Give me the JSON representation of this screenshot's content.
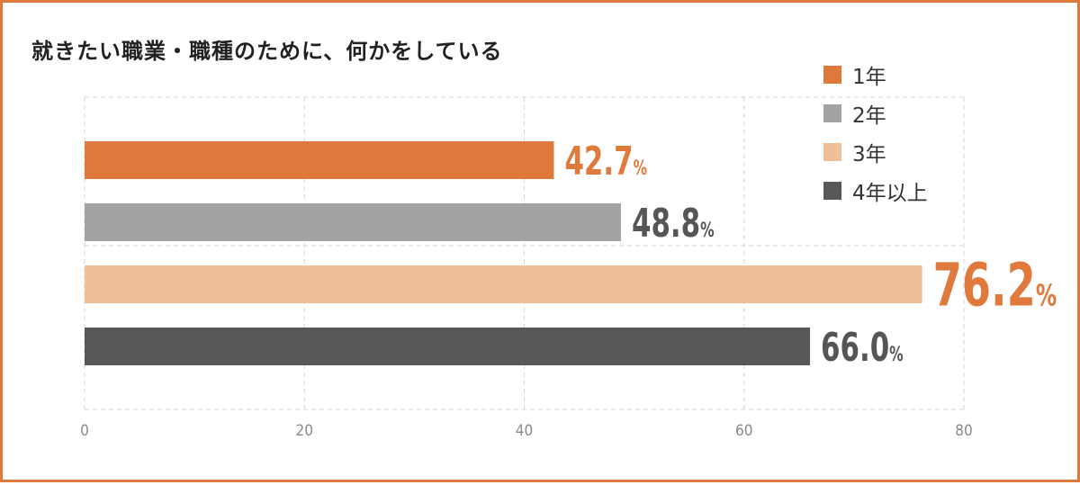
{
  "chart_data": {
    "type": "bar",
    "orientation": "horizontal",
    "title": "就きたい職業・職種のために、何かをしている",
    "xlim": [
      0,
      80
    ],
    "x_ticks": [
      "0",
      "20",
      "40",
      "60",
      "80"
    ],
    "grid": true,
    "legend_position": "top-right",
    "unit_suffix": "%",
    "series": [
      {
        "name": "1年",
        "value": 42.7,
        "label": "42.7",
        "color": "#e07a3c",
        "label_color": "#e07a3c"
      },
      {
        "name": "2年",
        "value": 48.8,
        "label": "48.8",
        "color": "#a3a3a3",
        "label_color": "#555555"
      },
      {
        "name": "3年",
        "value": 76.2,
        "label": "76.2",
        "color": "#efbf98",
        "label_color": "#e07a3c"
      },
      {
        "name": "4年以上",
        "value": 66.0,
        "label": "66.0",
        "color": "#595757",
        "label_color": "#555555"
      }
    ]
  }
}
